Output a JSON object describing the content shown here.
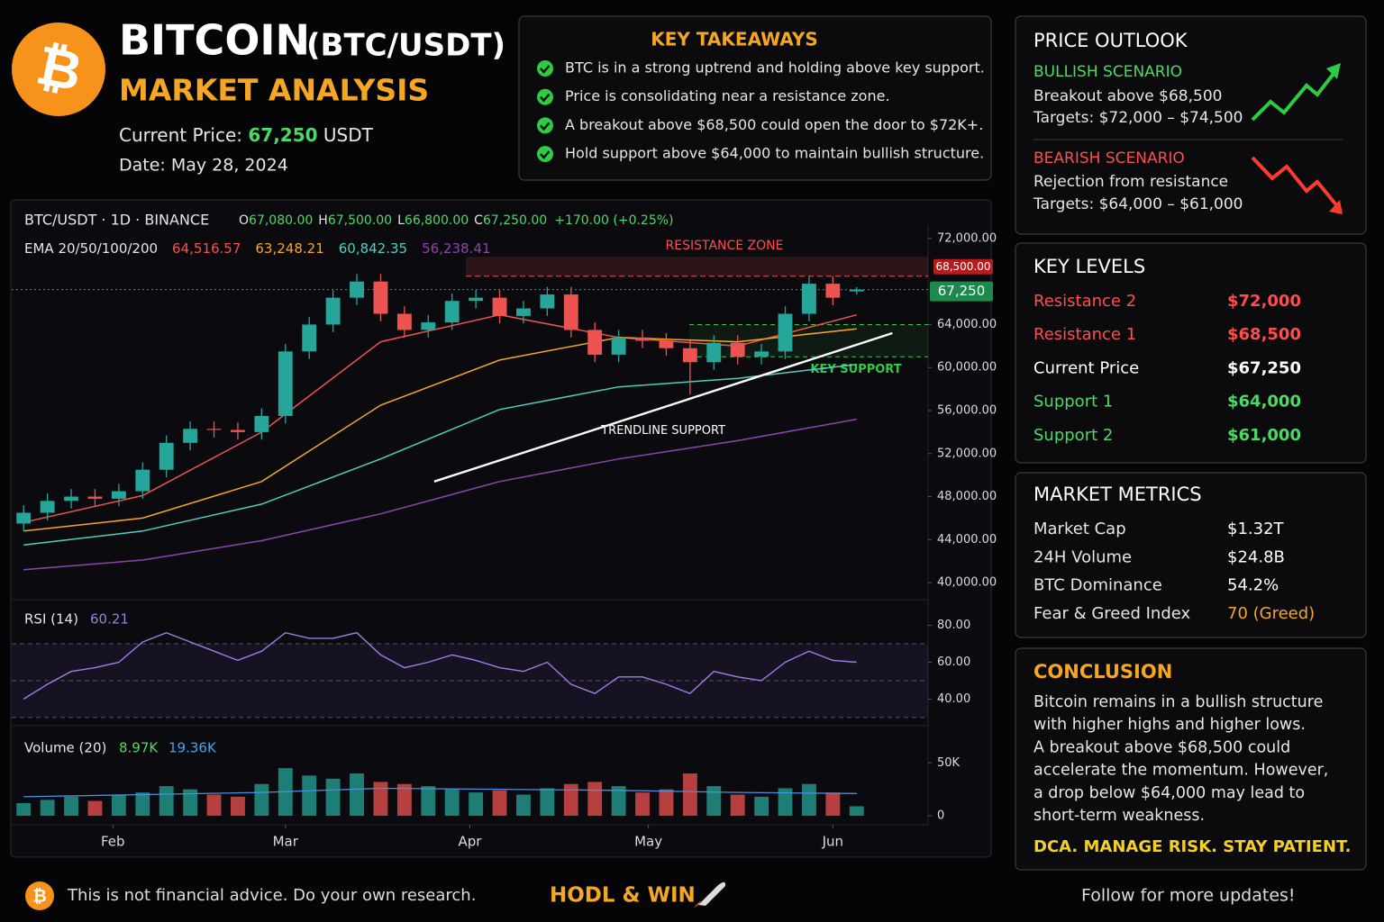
{
  "header": {
    "logo": "₿",
    "title": "BITCOIN",
    "pair": "(BTC/USDT)",
    "subtitle": "MARKET ANALYSIS",
    "price_label": "Current Price:",
    "price": "67,250",
    "price_unit": "USDT",
    "date": "Date: May 28, 2024"
  },
  "takeaways": {
    "title": "KEY TAKEAWAYS",
    "items": [
      "BTC is in a strong uptrend and holding above key support.",
      "Price is consolidating near a resistance zone.",
      "A breakout above $68,500 could open the door to $72K+.",
      "Hold support above $64,000 to maintain bullish structure."
    ]
  },
  "outlook": {
    "title": "PRICE OUTLOOK",
    "bullish": {
      "title": "BULLISH SCENARIO",
      "lines": [
        "Breakout above $68,500",
        "Targets: $72,000 – $74,500"
      ]
    },
    "bearish": {
      "title": "BEARISH SCENARIO",
      "lines": [
        "Rejection from resistance",
        "Targets: $64,000 – $61,000"
      ]
    }
  },
  "key_levels": {
    "title": "KEY LEVELS",
    "rows": [
      {
        "label": "Resistance 2",
        "value": "$72,000",
        "color": "#ff4d4d"
      },
      {
        "label": "Resistance 1",
        "value": "$68,500",
        "color": "#ff4d4d"
      },
      {
        "label": "Current Price",
        "value": "$67,250",
        "color": "#ffffff"
      },
      {
        "label": "Support 1",
        "value": "$64,000",
        "color": "#4cd964"
      },
      {
        "label": "Support 2",
        "value": "$61,000",
        "color": "#4cd964"
      }
    ]
  },
  "metrics": {
    "title": "MARKET METRICS",
    "rows": [
      {
        "label": "Market Cap",
        "value": "$1.32T",
        "color": "#ffffff"
      },
      {
        "label": "24H Volume",
        "value": "$24.8B",
        "color": "#ffffff"
      },
      {
        "label": "BTC Dominance",
        "value": "54.2%",
        "color": "#ffffff"
      },
      {
        "label": "Fear & Greed Index",
        "value": "70 (Greed)",
        "color": "#f5a623"
      }
    ]
  },
  "conclusion": {
    "title": "CONCLUSION",
    "lines": [
      "Bitcoin remains in a bullish structure",
      "with higher highs and higher lows.",
      "A breakout above $68,500 could",
      "accelerate the momentum. However,",
      "a drop below $64,000 may lead to",
      "short-term weakness."
    ],
    "tagline": "DCA. MANAGE RISK. STAY PATIENT."
  },
  "footer": {
    "logo": "₿",
    "disclaimer": "This is not financial advice. Do your own research.",
    "slogan": "HODL & WIN",
    "follow": "Follow for more updates!"
  },
  "chart_header": {
    "symbol": "BTC/USDT · 1D · BINANCE",
    "ohlc": [
      {
        "label": "O",
        "value": "67,080.00"
      },
      {
        "label": "H",
        "value": "67,500.00"
      },
      {
        "label": "L",
        "value": "66,800.00"
      },
      {
        "label": "C",
        "value": "67,250.00"
      }
    ],
    "change": "+170.00 (+0.25%)"
  },
  "chart_data": [
    {
      "type": "candlestick",
      "up_color": "#26a69a",
      "down_color": "#ef5350",
      "x": [
        17,
        21,
        25,
        29,
        33,
        37,
        41,
        45,
        49,
        53,
        57,
        61,
        65,
        69,
        73,
        77,
        81,
        85,
        89,
        93,
        97,
        101,
        105,
        109,
        113,
        117,
        121,
        125,
        129,
        133,
        137,
        141,
        145,
        149,
        153,
        157
      ],
      "open": [
        45500,
        46500,
        47600,
        48000,
        47800,
        48500,
        50500,
        53000,
        54300,
        54200,
        54000,
        55500,
        61500,
        64000,
        66500,
        68000,
        65000,
        63500,
        64200,
        66200,
        66500,
        64800,
        65500,
        66800,
        63500,
        61200,
        62800,
        62500,
        61800,
        60500,
        62300,
        61000,
        61500,
        65000,
        67800,
        67080
      ],
      "high": [
        47200,
        48300,
        48700,
        48700,
        49200,
        51200,
        53700,
        55000,
        55000,
        54900,
        56200,
        62200,
        64700,
        67200,
        68700,
        68700,
        65700,
        64900,
        66900,
        67200,
        67200,
        66200,
        67500,
        67500,
        64200,
        63500,
        63500,
        63200,
        62500,
        63000,
        63000,
        62200,
        65700,
        68500,
        68500,
        67500
      ],
      "low": [
        44800,
        45800,
        46900,
        47100,
        47100,
        47800,
        49800,
        52300,
        53500,
        53300,
        53300,
        54800,
        60800,
        63300,
        65800,
        64300,
        62800,
        62800,
        63500,
        65500,
        64100,
        64100,
        64800,
        62800,
        60500,
        60500,
        61800,
        61100,
        57500,
        59800,
        60300,
        60300,
        60800,
        64300,
        65800,
        66800
      ],
      "close": [
        46500,
        47600,
        48000,
        47800,
        48500,
        50500,
        53000,
        54300,
        54200,
        54000,
        55500,
        61500,
        64000,
        66500,
        68000,
        65000,
        63500,
        64200,
        66200,
        66500,
        64800,
        65500,
        66800,
        63500,
        61200,
        62800,
        62500,
        61800,
        60500,
        62300,
        61000,
        61500,
        65000,
        67800,
        66500,
        67250
      ],
      "xlim": [
        15,
        169
      ],
      "xticks": [
        {
          "value": 32,
          "label": "Feb"
        },
        {
          "value": 61,
          "label": "Mar"
        },
        {
          "value": 92,
          "label": "Apr"
        },
        {
          "value": 122,
          "label": "May"
        },
        {
          "value": 153,
          "label": "Jun"
        }
      ],
      "ylim": [
        38500,
        73250
      ],
      "yticks": [
        {
          "value": 40000,
          "label": "40,000.00"
        },
        {
          "value": 44000,
          "label": "44,000.00"
        },
        {
          "value": 48000,
          "label": "48,000.00"
        },
        {
          "value": 52000,
          "label": "52,000.00"
        },
        {
          "value": 56000,
          "label": "56,000.00"
        },
        {
          "value": 60000,
          "label": "60,000.00"
        },
        {
          "value": 64000,
          "label": "64,000.00"
        },
        {
          "value": 72000,
          "label": "72,000.00"
        }
      ],
      "ema": {
        "legend": "EMA 20/50/100/200",
        "x": [
          17,
          37,
          57,
          77,
          97,
          117,
          137,
          157
        ],
        "series": [
          {
            "color": "#ef5350",
            "label": "64,516.57",
            "values": [
              45600,
              48100,
              54000,
              62400,
              64900,
              62800,
              62000,
              64900
            ]
          },
          {
            "color": "#f5a623",
            "label": "63,248.21",
            "values": [
              44800,
              46000,
              49400,
              56500,
              60700,
              62800,
              62400,
              63600
            ]
          },
          {
            "color": "#4dd0c0",
            "label": "60,842.35",
            "values": [
              43500,
              44800,
              47300,
              51500,
              56100,
              58200,
              59000,
              60300
            ]
          },
          {
            "color": "#8e44ad",
            "label": "56,238.41",
            "values": [
              41200,
              42100,
              43900,
              46400,
              49400,
              51500,
              53200,
              55200
            ]
          }
        ]
      },
      "resistance": {
        "value": 68500,
        "label": "68,500.00"
      },
      "current": {
        "value": 67250,
        "label": "67,250"
      },
      "resistance_zone": {
        "range": [
          68500,
          70300
        ],
        "label": "RESISTANCE ZONE"
      },
      "support_zone": {
        "range": [
          61000,
          64000
        ],
        "label": "KEY SUPPORT"
      },
      "trendline": {
        "x": [
          86,
          163
        ],
        "y": [
          49400,
          63200
        ],
        "label": "TRENDLINE SUPPORT"
      }
    },
    {
      "type": "line",
      "title": "RSI (14)",
      "value_label": "60.21",
      "color": "#9b7fe6",
      "x": [
        17,
        21,
        25,
        29,
        33,
        37,
        41,
        45,
        49,
        53,
        57,
        61,
        65,
        69,
        73,
        77,
        81,
        85,
        89,
        93,
        97,
        101,
        105,
        109,
        113,
        117,
        121,
        125,
        129,
        133,
        137,
        141,
        145,
        149,
        153,
        157
      ],
      "values": [
        40,
        48,
        55,
        57,
        60,
        71,
        76,
        71,
        66,
        61,
        66,
        76,
        73,
        73,
        76,
        64,
        57,
        60,
        64,
        61,
        57,
        55,
        60,
        48,
        43,
        52,
        52,
        48,
        43,
        55,
        52,
        50,
        60,
        66,
        61,
        60
      ],
      "levels": [
        30,
        50,
        70
      ],
      "xlim": [
        15,
        169
      ],
      "ylim": [
        26,
        92
      ],
      "yticks": [
        {
          "value": 40,
          "label": "40.00"
        },
        {
          "value": 60,
          "label": "60.00"
        },
        {
          "value": 80,
          "label": "80.00"
        }
      ]
    },
    {
      "type": "bar",
      "title": "Volume (20)",
      "value_label": "8.97K",
      "ma_label": "19.36K",
      "x": [
        17,
        21,
        25,
        29,
        33,
        37,
        41,
        45,
        49,
        53,
        57,
        61,
        65,
        69,
        73,
        77,
        81,
        85,
        89,
        93,
        97,
        101,
        105,
        109,
        113,
        117,
        121,
        125,
        129,
        133,
        137,
        141,
        145,
        149,
        153,
        157
      ],
      "values": [
        12000,
        15000,
        18000,
        14000,
        20000,
        22000,
        28000,
        25000,
        20000,
        18000,
        30000,
        45000,
        38000,
        35000,
        40000,
        32000,
        30000,
        28000,
        25000,
        22000,
        24000,
        20000,
        26000,
        30000,
        32000,
        28000,
        22000,
        25000,
        40000,
        28000,
        20000,
        18000,
        26000,
        30000,
        22000,
        8970
      ],
      "ma": {
        "color": "#4a90e2",
        "x": [
          17,
          37,
          57,
          77,
          97,
          117,
          137,
          157
        ],
        "values": [
          18000,
          20000,
          22000,
          26000,
          25000,
          24000,
          22000,
          21000
        ]
      },
      "xlim": [
        15,
        169
      ],
      "ylim": [
        0,
        80000
      ],
      "yticks": [
        0,
        {
          "value": 50000,
          "label": "50K"
        }
      ]
    }
  ]
}
